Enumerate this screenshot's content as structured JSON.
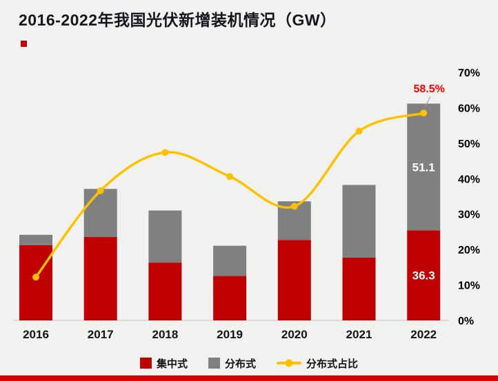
{
  "page": {
    "title": "2016-2022年我国光伏新增装机情况（GW）"
  },
  "chart_data": {
    "type": "bar",
    "subtype": "stacked-bars-with-line-overlay",
    "title": "2016-2022年我国光伏新增装机情况（GW）",
    "categories": [
      "2016",
      "2017",
      "2018",
      "2019",
      "2020",
      "2021",
      "2022"
    ],
    "series": [
      {
        "name": "集中式",
        "type": "bar",
        "stack": true,
        "color": "#c00000",
        "values": [
          30.3,
          33.6,
          23.3,
          17.9,
          32.4,
          25.3,
          36.3
        ]
      },
      {
        "name": "分布式",
        "type": "bar",
        "stack": true,
        "color": "#808080",
        "values": [
          4.2,
          19.4,
          21.0,
          12.2,
          15.6,
          29.3,
          51.1
        ]
      },
      {
        "name": "分布式占比",
        "type": "line",
        "axis": "right",
        "color": "#ffc000",
        "unit": "%",
        "values": [
          12.2,
          36.6,
          47.4,
          40.6,
          32.2,
          53.4,
          58.5
        ]
      }
    ],
    "left_axis": {
      "visible": false,
      "unit": "GW",
      "range": [
        0,
        100
      ]
    },
    "right_axis": {
      "range": [
        0,
        70
      ],
      "ticks": [
        "0%",
        "10%",
        "20%",
        "30%",
        "40%",
        "50%",
        "60%",
        "70%"
      ]
    },
    "grid": false,
    "legend_position": "bottom",
    "annotations": [
      {
        "series": 0,
        "category": 6,
        "text": "36.3",
        "color": "#ffffff"
      },
      {
        "series": 1,
        "category": 6,
        "text": "51.1",
        "color": "#ffffff"
      },
      {
        "series": 2,
        "category": 6,
        "text": "58.5%",
        "color": "#ff0000"
      }
    ]
  },
  "colors": {
    "background": "#f1f1ef",
    "title_text": "#15151e",
    "accent_red": "#c00000",
    "bottom_strip": "#d40000",
    "axis_line": "#c3c3c3"
  }
}
